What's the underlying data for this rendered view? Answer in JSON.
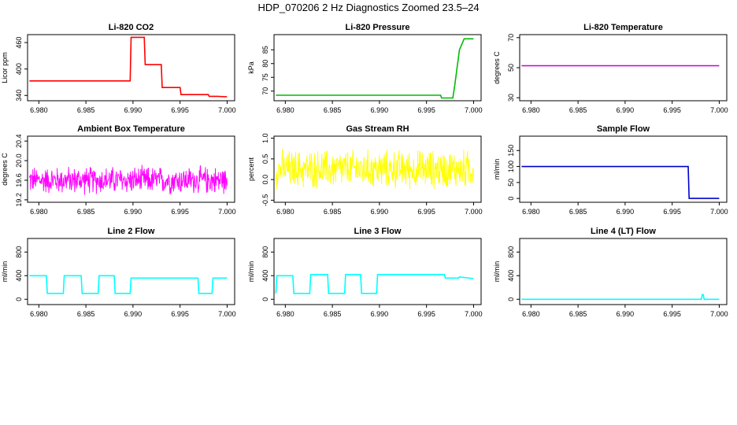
{
  "title": "HDP_070206  2 Hz Diagnostics Zoomed 23.5–24",
  "chart_data": [
    {
      "type": "line",
      "title": "Li-820 CO2",
      "ylabel": "Licor ppm",
      "xlim": [
        6.9788,
        7.0008
      ],
      "ylim": [
        328,
        478
      ],
      "xticks": [
        6.98,
        6.985,
        6.99,
        6.995,
        7.0
      ],
      "xtick_labels": [
        "6.980",
        "6.985",
        "6.990",
        "6.995",
        "7.000"
      ],
      "yticks": [
        340,
        400,
        460
      ],
      "ytick_labels": [
        "340",
        "400",
        "460"
      ],
      "color": "#ff0000",
      "noise": 0,
      "series": [
        {
          "x": [
            6.979,
            6.9897,
            6.9898,
            6.9912,
            6.9913,
            6.993,
            6.9931,
            6.995,
            6.9951,
            6.998,
            6.9981,
            6.999,
            7.0
          ],
          "y": [
            373,
            373,
            472,
            472,
            410,
            410,
            358,
            358,
            342,
            342,
            338,
            338,
            337
          ]
        }
      ]
    },
    {
      "type": "line",
      "title": "Li-820 Pressure",
      "ylabel": "kPa",
      "xlim": [
        6.9788,
        7.0008
      ],
      "ylim": [
        66.5,
        90.5
      ],
      "xticks": [
        6.98,
        6.985,
        6.99,
        6.995,
        7.0
      ],
      "xtick_labels": [
        "6.980",
        "6.985",
        "6.990",
        "6.995",
        "7.000"
      ],
      "yticks": [
        70,
        75,
        80,
        85
      ],
      "ytick_labels": [
        "70",
        "75",
        "80",
        "85"
      ],
      "color": "#00bb00",
      "noise": 0,
      "series": [
        {
          "x": [
            6.979,
            6.9965,
            6.9966,
            6.9978,
            6.998,
            6.9985,
            6.999,
            7.0
          ],
          "y": [
            68.5,
            68.5,
            67.5,
            67.5,
            72,
            85,
            89,
            89
          ]
        }
      ]
    },
    {
      "type": "line",
      "title": "Li-820 Temperature",
      "ylabel": "degrees C",
      "xlim": [
        6.9788,
        7.0008
      ],
      "ylim": [
        28,
        72
      ],
      "xticks": [
        6.98,
        6.985,
        6.99,
        6.995,
        7.0
      ],
      "xtick_labels": [
        "6.980",
        "6.985",
        "6.990",
        "6.995",
        "7.000"
      ],
      "yticks": [
        30,
        50,
        70
      ],
      "ytick_labels": [
        "30",
        "50",
        "70"
      ],
      "color": "#cc00cc",
      "noise": 0,
      "series": [
        {
          "x": [
            6.979,
            7.0
          ],
          "y": [
            51.3,
            51.3
          ]
        }
      ]
    },
    {
      "type": "line",
      "title": "Ambient Box Temperature",
      "ylabel": "degrees C",
      "xlim": [
        6.9788,
        7.0008
      ],
      "ylim": [
        19.15,
        20.5
      ],
      "xticks": [
        6.98,
        6.985,
        6.99,
        6.995,
        7.0
      ],
      "xtick_labels": [
        "6.980",
        "6.985",
        "6.990",
        "6.995",
        "7.000"
      ],
      "yticks": [
        19.2,
        19.6,
        20.0,
        20.4
      ],
      "ytick_labels": [
        "19.2",
        "19.6",
        "20.0",
        "20.4"
      ],
      "color": "#ff00ff",
      "noise": 0.33,
      "series": [
        {
          "x": [
            6.979,
            7.0
          ],
          "y": [
            19.6,
            19.6
          ]
        }
      ]
    },
    {
      "type": "line",
      "title": "Gas Stream RH",
      "ylabel": "percent",
      "xlim": [
        6.9788,
        7.0008
      ],
      "ylim": [
        -0.55,
        1.05
      ],
      "xticks": [
        6.98,
        6.985,
        6.99,
        6.995,
        7.0
      ],
      "xtick_labels": [
        "6.980",
        "6.985",
        "6.990",
        "6.995",
        "7.000"
      ],
      "yticks": [
        -0.5,
        0.0,
        0.5,
        1.0
      ],
      "ytick_labels": [
        "-0.5",
        "0.0",
        "0.5",
        "1.0"
      ],
      "color": "#ffff00",
      "noise": 0.55,
      "series": [
        {
          "x": [
            6.979,
            7.0
          ],
          "y": [
            0.25,
            0.25
          ]
        }
      ]
    },
    {
      "type": "line",
      "title": "Sample Flow",
      "ylabel": "ml/min",
      "xlim": [
        6.9788,
        7.0008
      ],
      "ylim": [
        -12,
        195
      ],
      "xticks": [
        6.98,
        6.985,
        6.99,
        6.995,
        7.0
      ],
      "xtick_labels": [
        "6.980",
        "6.985",
        "6.990",
        "6.995",
        "7.000"
      ],
      "yticks": [
        0,
        50,
        100,
        150
      ],
      "ytick_labels": [
        "0",
        "50",
        "100",
        "150"
      ],
      "color": "#0000cc",
      "noise": 0,
      "series": [
        {
          "x": [
            6.979,
            6.9967,
            6.9968,
            7.0
          ],
          "y": [
            100,
            100,
            0,
            0
          ]
        }
      ]
    },
    {
      "type": "line",
      "title": "Line 2 Flow",
      "ylabel": "ml/min",
      "xlim": [
        6.9788,
        7.0008
      ],
      "ylim": [
        -90,
        1030
      ],
      "xticks": [
        6.98,
        6.985,
        6.99,
        6.995,
        7.0
      ],
      "xtick_labels": [
        "6.980",
        "6.985",
        "6.990",
        "6.995",
        "7.000"
      ],
      "yticks": [
        0,
        400,
        800
      ],
      "ytick_labels": [
        "0",
        "400",
        "800"
      ],
      "color": "#00ffff",
      "noise": 0,
      "series": [
        {
          "x": [
            6.979,
            6.9808,
            6.9809,
            6.9826,
            6.9827,
            6.9845,
            6.9846,
            6.9863,
            6.9864,
            6.988,
            6.9881,
            6.9897,
            6.9898,
            6.9969,
            6.997,
            6.9984,
            6.9985,
            7.0
          ],
          "y": [
            400,
            400,
            100,
            100,
            400,
            400,
            100,
            100,
            400,
            400,
            100,
            100,
            360,
            360,
            100,
            100,
            360,
            360
          ]
        }
      ]
    },
    {
      "type": "line",
      "title": "Line 3 Flow",
      "ylabel": "ml/min",
      "xlim": [
        6.9788,
        7.0008
      ],
      "ylim": [
        -90,
        1030
      ],
      "xticks": [
        6.98,
        6.985,
        6.99,
        6.995,
        7.0
      ],
      "xtick_labels": [
        "6.980",
        "6.985",
        "6.990",
        "6.995",
        "7.000"
      ],
      "yticks": [
        0,
        400,
        800
      ],
      "ytick_labels": [
        "0",
        "400",
        "800"
      ],
      "color": "#00ffff",
      "noise": 0,
      "series": [
        {
          "x": [
            6.979,
            6.979,
            6.9791,
            6.9808,
            6.9809,
            6.9826,
            6.9827,
            6.9845,
            6.9846,
            6.9863,
            6.9864,
            6.988,
            6.9881,
            6.9897,
            6.9898,
            6.9969,
            6.997,
            6.9984,
            6.9985,
            7.0
          ],
          "y": [
            100,
            100,
            400,
            400,
            100,
            100,
            420,
            420,
            100,
            100,
            420,
            420,
            100,
            100,
            420,
            420,
            360,
            360,
            380,
            350
          ]
        }
      ]
    },
    {
      "type": "line",
      "title": "Line 4 (LT) Flow",
      "ylabel": "ml/min",
      "xlim": [
        6.9788,
        7.0008
      ],
      "ylim": [
        -90,
        1030
      ],
      "xticks": [
        6.98,
        6.985,
        6.99,
        6.995,
        7.0
      ],
      "xtick_labels": [
        "6.980",
        "6.985",
        "6.990",
        "6.995",
        "7.000"
      ],
      "yticks": [
        0,
        400,
        800
      ],
      "ytick_labels": [
        "0",
        "400",
        "800"
      ],
      "color": "#00ffff",
      "noise": 0,
      "series": [
        {
          "x": [
            6.979,
            6.9981,
            6.9982,
            6.9983,
            6.9984,
            7.0
          ],
          "y": [
            0,
            0,
            80,
            80,
            0,
            0
          ]
        }
      ]
    }
  ]
}
